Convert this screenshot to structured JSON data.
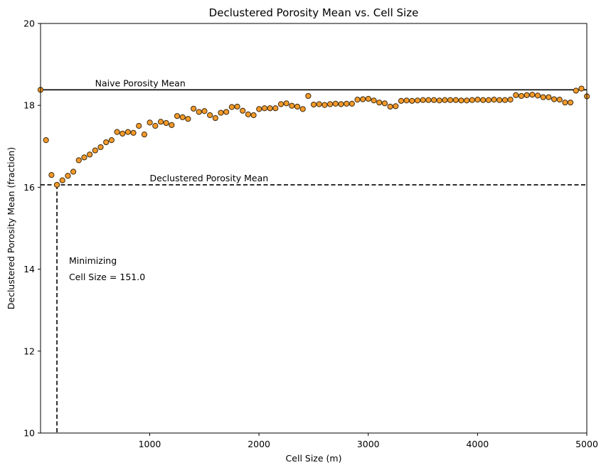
{
  "chart_data": {
    "type": "scatter",
    "title": "Declustered Porosity Mean vs. Cell Size",
    "xlabel": "Cell Size (m)",
    "ylabel": "Declustered Porosity Mean (fraction)",
    "xlim": [
      1,
      5000
    ],
    "ylim": [
      10,
      20
    ],
    "x_ticks": [
      1000,
      2000,
      3000,
      4000,
      5000
    ],
    "y_ticks": [
      10,
      12,
      14,
      16,
      18,
      20
    ],
    "grid": false,
    "marker_color": "#f59a2a",
    "marker_edge_color": "#3a2a10",
    "x": [
      1,
      51,
      101,
      151,
      201,
      251,
      301,
      351,
      401,
      451,
      501,
      551,
      601,
      651,
      701,
      751,
      801,
      851,
      901,
      951,
      1001,
      1051,
      1101,
      1151,
      1201,
      1251,
      1301,
      1351,
      1401,
      1451,
      1501,
      1551,
      1601,
      1651,
      1701,
      1751,
      1801,
      1851,
      1901,
      1951,
      2001,
      2051,
      2101,
      2151,
      2201,
      2251,
      2301,
      2351,
      2401,
      2451,
      2501,
      2551,
      2601,
      2651,
      2701,
      2751,
      2801,
      2851,
      2901,
      2951,
      3001,
      3051,
      3101,
      3151,
      3201,
      3251,
      3301,
      3351,
      3401,
      3451,
      3501,
      3551,
      3601,
      3651,
      3701,
      3751,
      3801,
      3851,
      3901,
      3951,
      4001,
      4051,
      4101,
      4151,
      4201,
      4251,
      4301,
      4351,
      4401,
      4451,
      4501,
      4551,
      4601,
      4651,
      4701,
      4751,
      4801,
      4851,
      4901,
      4951,
      5001
    ],
    "y": [
      18.38,
      17.15,
      16.3,
      16.06,
      16.17,
      16.28,
      16.38,
      16.66,
      16.73,
      16.8,
      16.9,
      16.98,
      17.1,
      17.15,
      17.35,
      17.31,
      17.35,
      17.33,
      17.5,
      17.29,
      17.58,
      17.5,
      17.6,
      17.57,
      17.52,
      17.74,
      17.71,
      17.67,
      17.92,
      17.84,
      17.86,
      17.76,
      17.69,
      17.82,
      17.84,
      17.96,
      17.97,
      17.87,
      17.78,
      17.76,
      17.91,
      17.93,
      17.93,
      17.93,
      18.03,
      18.05,
      17.99,
      17.97,
      17.91,
      18.23,
      18.02,
      18.03,
      18.01,
      18.03,
      18.04,
      18.03,
      18.04,
      18.04,
      18.14,
      18.15,
      18.16,
      18.12,
      18.07,
      18.05,
      17.97,
      17.98,
      18.11,
      18.12,
      18.11,
      18.12,
      18.13,
      18.13,
      18.13,
      18.12,
      18.13,
      18.13,
      18.13,
      18.12,
      18.12,
      18.13,
      18.14,
      18.13,
      18.13,
      18.14,
      18.13,
      18.13,
      18.14,
      18.25,
      18.23,
      18.25,
      18.26,
      18.24,
      18.2,
      18.2,
      18.15,
      18.14,
      18.07,
      18.07,
      18.36,
      18.41,
      18.22
    ],
    "reference_lines": [
      {
        "orientation": "horizontal",
        "y": 18.38,
        "style": "solid",
        "label": "Naive Porosity Mean",
        "label_x": 500
      },
      {
        "orientation": "horizontal",
        "y": 16.06,
        "style": "dashed",
        "label": "Declustered Porosity Mean",
        "label_x": 1000
      },
      {
        "orientation": "vertical",
        "x": 151,
        "style": "dashed",
        "y_top": 16.06
      }
    ],
    "annotations": [
      {
        "text": "Minimizing",
        "x": 170,
        "y": 14.2
      },
      {
        "text": "Cell Size = 151.0",
        "x": 170,
        "y": 13.8
      }
    ]
  }
}
